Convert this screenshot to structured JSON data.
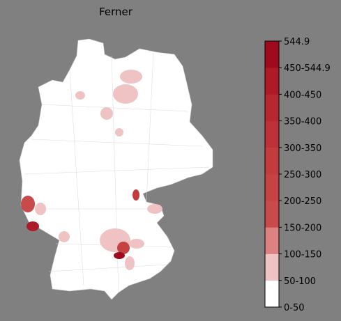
{
  "title": "Ferner",
  "colorbar": {
    "labels": [
      "0-50",
      "50-100",
      "100-150",
      "150-200",
      "200-250",
      "250-300",
      "300-350",
      "350-400",
      "400-450",
      "450-544.9",
      "544.9"
    ],
    "colors": [
      "#ffffff",
      "#efc3c3",
      "#dc8282",
      "#c94a4a",
      "#c64343",
      "#c23c3e",
      "#bd3238",
      "#b62830",
      "#ac1b27",
      "#9e0b1e"
    ]
  }
}
